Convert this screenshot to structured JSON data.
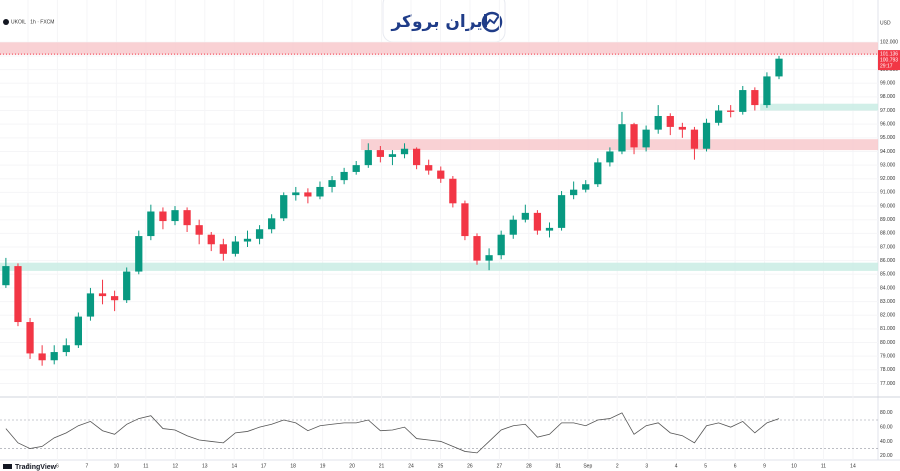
{
  "header": {
    "symbol": "UKOIL · 1h · FXCM",
    "currency": "USD",
    "brand": "ایران بروکر",
    "platform": "TradingView"
  },
  "chart_data": {
    "type": "candlestick",
    "x": [
      -0.75,
      -0.34,
      0.07,
      0.48,
      0.89,
      1.3,
      1.71,
      2.12,
      2.53,
      2.94,
      3.35,
      3.76,
      4.17,
      4.58,
      4.99,
      5.4,
      5.81,
      6.22,
      6.63,
      7.04,
      7.45,
      7.86,
      8.27,
      8.68,
      9.09,
      9.5,
      9.91,
      10.32,
      10.73,
      11.14,
      11.55,
      11.96,
      12.37,
      12.78,
      13.19,
      13.6,
      14.01,
      14.42,
      14.83,
      15.24,
      15.65,
      16.06,
      16.47,
      16.88,
      17.29,
      17.7,
      18.11,
      18.52,
      18.93,
      19.34,
      19.75,
      20.16,
      20.57,
      20.98,
      21.39,
      21.8,
      22.21,
      22.62,
      23.03,
      23.44,
      23.85,
      24.26,
      24.67,
      25.08,
      25.49
    ],
    "open": [
      84.2,
      85.6,
      81.5,
      79.2,
      78.7,
      79.3,
      79.8,
      81.9,
      83.6,
      83.4,
      83.1,
      85.2,
      87.8,
      89.6,
      88.9,
      89.7,
      88.6,
      87.9,
      87.2,
      86.5,
      87.4,
      87.6,
      88.3,
      89.1,
      90.8,
      91.0,
      90.7,
      91.4,
      91.9,
      92.5,
      93.0,
      94.1,
      93.6,
      93.8,
      94.2,
      93.0,
      92.6,
      92.0,
      90.2,
      87.8,
      86.0,
      86.4,
      87.9,
      89.0,
      89.5,
      88.2,
      88.4,
      90.8,
      91.2,
      91.6,
      93.2,
      94.0,
      96.0,
      94.3,
      95.6,
      96.6,
      95.8,
      95.6,
      94.2,
      96.1,
      97.0,
      96.9,
      98.5,
      97.4,
      99.5
    ],
    "high": [
      86.2,
      85.8,
      81.8,
      79.8,
      79.8,
      80.3,
      82.2,
      84.0,
      84.6,
      83.8,
      85.5,
      88.2,
      90.1,
      89.9,
      90.0,
      89.9,
      89.0,
      88.1,
      87.6,
      87.8,
      88.2,
      88.6,
      89.4,
      91.0,
      91.4,
      91.3,
      91.8,
      92.2,
      92.8,
      93.3,
      94.6,
      94.4,
      94.1,
      94.6,
      94.3,
      93.4,
      92.9,
      92.2,
      90.4,
      88.0,
      86.9,
      88.2,
      89.3,
      90.1,
      89.7,
      88.8,
      91.1,
      91.8,
      91.9,
      93.5,
      94.3,
      96.9,
      96.1,
      95.9,
      97.4,
      96.8,
      96.1,
      95.8,
      96.4,
      97.4,
      97.4,
      98.8,
      98.7,
      99.8,
      101.0
    ],
    "low": [
      84.0,
      81.2,
      78.8,
      78.3,
      78.4,
      79.0,
      79.6,
      81.6,
      82.8,
      82.3,
      82.9,
      85.0,
      87.5,
      88.3,
      88.6,
      88.1,
      87.2,
      86.7,
      86.0,
      86.3,
      87.0,
      87.2,
      88.0,
      88.9,
      90.4,
      90.2,
      90.5,
      91.0,
      91.6,
      92.3,
      92.8,
      93.2,
      93.0,
      93.5,
      92.7,
      92.3,
      91.7,
      89.9,
      87.5,
      85.7,
      85.3,
      86.1,
      87.6,
      88.8,
      87.9,
      87.7,
      88.2,
      90.5,
      91.0,
      91.4,
      92.9,
      93.8,
      93.8,
      94.0,
      95.3,
      95.2,
      95.0,
      93.4,
      94.0,
      95.9,
      96.5,
      96.7,
      97.0,
      97.2,
      99.3
    ],
    "close": [
      85.6,
      81.5,
      79.2,
      78.7,
      79.3,
      79.8,
      81.9,
      83.6,
      83.4,
      83.1,
      85.2,
      87.8,
      89.6,
      88.9,
      89.7,
      88.6,
      87.9,
      87.2,
      86.5,
      87.4,
      87.6,
      88.3,
      89.1,
      90.8,
      91.0,
      90.7,
      91.4,
      91.9,
      92.5,
      93.0,
      94.1,
      93.6,
      93.8,
      94.2,
      93.0,
      92.6,
      92.0,
      90.2,
      87.8,
      86.0,
      86.4,
      87.9,
      89.0,
      89.5,
      88.2,
      88.4,
      90.8,
      91.2,
      91.6,
      93.2,
      94.0,
      96.0,
      94.3,
      95.6,
      96.6,
      95.8,
      95.6,
      94.2,
      96.1,
      97.0,
      96.9,
      98.5,
      97.4,
      99.5,
      100.8
    ],
    "up_color": "#089981",
    "down_color": "#f23645",
    "xlim": [
      -0.95,
      28.85
    ],
    "xticks": [
      {
        "value": 0,
        "label": "5"
      },
      {
        "value": 1,
        "label": "6"
      },
      {
        "value": 2,
        "label": "7"
      },
      {
        "value": 3,
        "label": "10"
      },
      {
        "value": 4,
        "label": "11"
      },
      {
        "value": 5,
        "label": "12"
      },
      {
        "value": 6,
        "label": "13"
      },
      {
        "value": 7,
        "label": "14"
      },
      {
        "value": 8,
        "label": "17"
      },
      {
        "value": 9,
        "label": "18"
      },
      {
        "value": 10,
        "label": "19"
      },
      {
        "value": 11,
        "label": "20"
      },
      {
        "value": 12,
        "label": "21"
      },
      {
        "value": 13,
        "label": "24"
      },
      {
        "value": 14,
        "label": "25"
      },
      {
        "value": 15,
        "label": "26"
      },
      {
        "value": 16,
        "label": "27"
      },
      {
        "value": 17,
        "label": "28"
      },
      {
        "value": 18,
        "label": "31"
      },
      {
        "value": 19,
        "label": "Sep"
      },
      {
        "value": 20,
        "label": "2"
      },
      {
        "value": 21,
        "label": "3"
      },
      {
        "value": 22,
        "label": "4"
      },
      {
        "value": 23,
        "label": "5"
      },
      {
        "value": 24,
        "label": "6"
      },
      {
        "value": 25,
        "label": "9"
      },
      {
        "value": 26,
        "label": "10"
      },
      {
        "value": 27,
        "label": "11"
      },
      {
        "value": 28,
        "label": "14"
      }
    ],
    "ylim": [
      76.3,
      105.1
    ],
    "yticks": [
      {
        "value": 77,
        "label": "77.000"
      },
      {
        "value": 78,
        "label": "78.000"
      },
      {
        "value": 79,
        "label": "79.000"
      },
      {
        "value": 80,
        "label": "80.000"
      },
      {
        "value": 81,
        "label": "81.000"
      },
      {
        "value": 82,
        "label": "82.000"
      },
      {
        "value": 83,
        "label": "83.000"
      },
      {
        "value": 84,
        "label": "84.000"
      },
      {
        "value": 85,
        "label": "85.000"
      },
      {
        "value": 86,
        "label": "86.000"
      },
      {
        "value": 87,
        "label": "87.000"
      },
      {
        "value": 88,
        "label": "88.000"
      },
      {
        "value": 89,
        "label": "89.000"
      },
      {
        "value": 90,
        "label": "90.000"
      },
      {
        "value": 91,
        "label": "91.000"
      },
      {
        "value": 92,
        "label": "92.000"
      },
      {
        "value": 93,
        "label": "93.000"
      },
      {
        "value": 94,
        "label": "94.000"
      },
      {
        "value": 95,
        "label": "95.000"
      },
      {
        "value": 96,
        "label": "96.000"
      },
      {
        "value": 97,
        "label": "97.000"
      },
      {
        "value": 98,
        "label": "98.000"
      },
      {
        "value": 99,
        "label": "99.000"
      },
      {
        "value": 100,
        "label": "100.000"
      },
      {
        "value": 101,
        "label": "101.000"
      },
      {
        "value": 102,
        "label": "102.000"
      }
    ],
    "grid": true,
    "zones": [
      {
        "low": 101.1,
        "high": 102.0,
        "start": -0.95,
        "color": "#f8c9cc"
      },
      {
        "low": 94.1,
        "high": 94.9,
        "start": 11.3,
        "color": "#f8c9cc"
      },
      {
        "low": 85.25,
        "high": 85.85,
        "start": -0.95,
        "color": "#c9ece4"
      },
      {
        "low": 97.0,
        "high": 97.5,
        "start": 24.85,
        "color": "#c9ece4"
      }
    ],
    "price_label": {
      "value": 101.136,
      "label": "101.136",
      "lines": [
        "100.793",
        "29:17"
      ],
      "color": "#f23645"
    },
    "rsi": {
      "values": [
        58,
        38,
        30,
        33,
        45,
        52,
        62,
        68,
        55,
        50,
        64,
        72,
        76,
        58,
        56,
        48,
        42,
        40,
        38,
        52,
        54,
        60,
        64,
        70,
        66,
        55,
        62,
        64,
        66,
        66,
        70,
        55,
        56,
        60,
        44,
        42,
        40,
        33,
        26,
        24,
        40,
        56,
        62,
        64,
        46,
        50,
        66,
        66,
        62,
        70,
        72,
        80,
        50,
        62,
        66,
        52,
        48,
        38,
        62,
        66,
        60,
        68,
        52,
        66,
        72
      ],
      "color": "#555555",
      "ylim": [
        14,
        98
      ],
      "levels": [
        70,
        30
      ],
      "yticks": [
        {
          "value": 80,
          "label": "80.00"
        },
        {
          "value": 60,
          "label": "60.00"
        },
        {
          "value": 40,
          "label": "40.00"
        },
        {
          "value": 20,
          "label": "20.00"
        }
      ]
    }
  }
}
